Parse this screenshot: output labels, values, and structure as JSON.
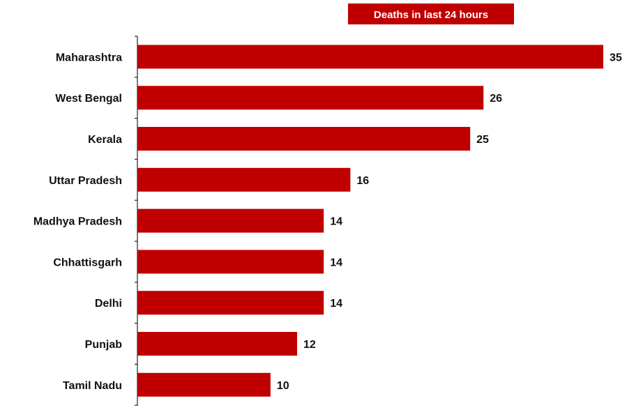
{
  "chart_data": {
    "type": "bar",
    "orientation": "horizontal",
    "title": "Deaths in last 24 hours",
    "categories": [
      "Maharashtra",
      "West Bengal",
      "Kerala",
      "Uttar Pradesh",
      "Madhya Pradesh",
      "Chhattisgarh",
      "Delhi",
      "Punjab",
      "Tamil Nadu"
    ],
    "values": [
      35,
      26,
      25,
      16,
      14,
      14,
      14,
      12,
      10
    ],
    "data_labels": true,
    "xlabel": "",
    "ylabel": "",
    "xlim": [
      0,
      35
    ],
    "grid": false,
    "colors": {
      "bar": "#c00000",
      "title_background": "#c00000",
      "title_text": "#ffffff"
    }
  }
}
